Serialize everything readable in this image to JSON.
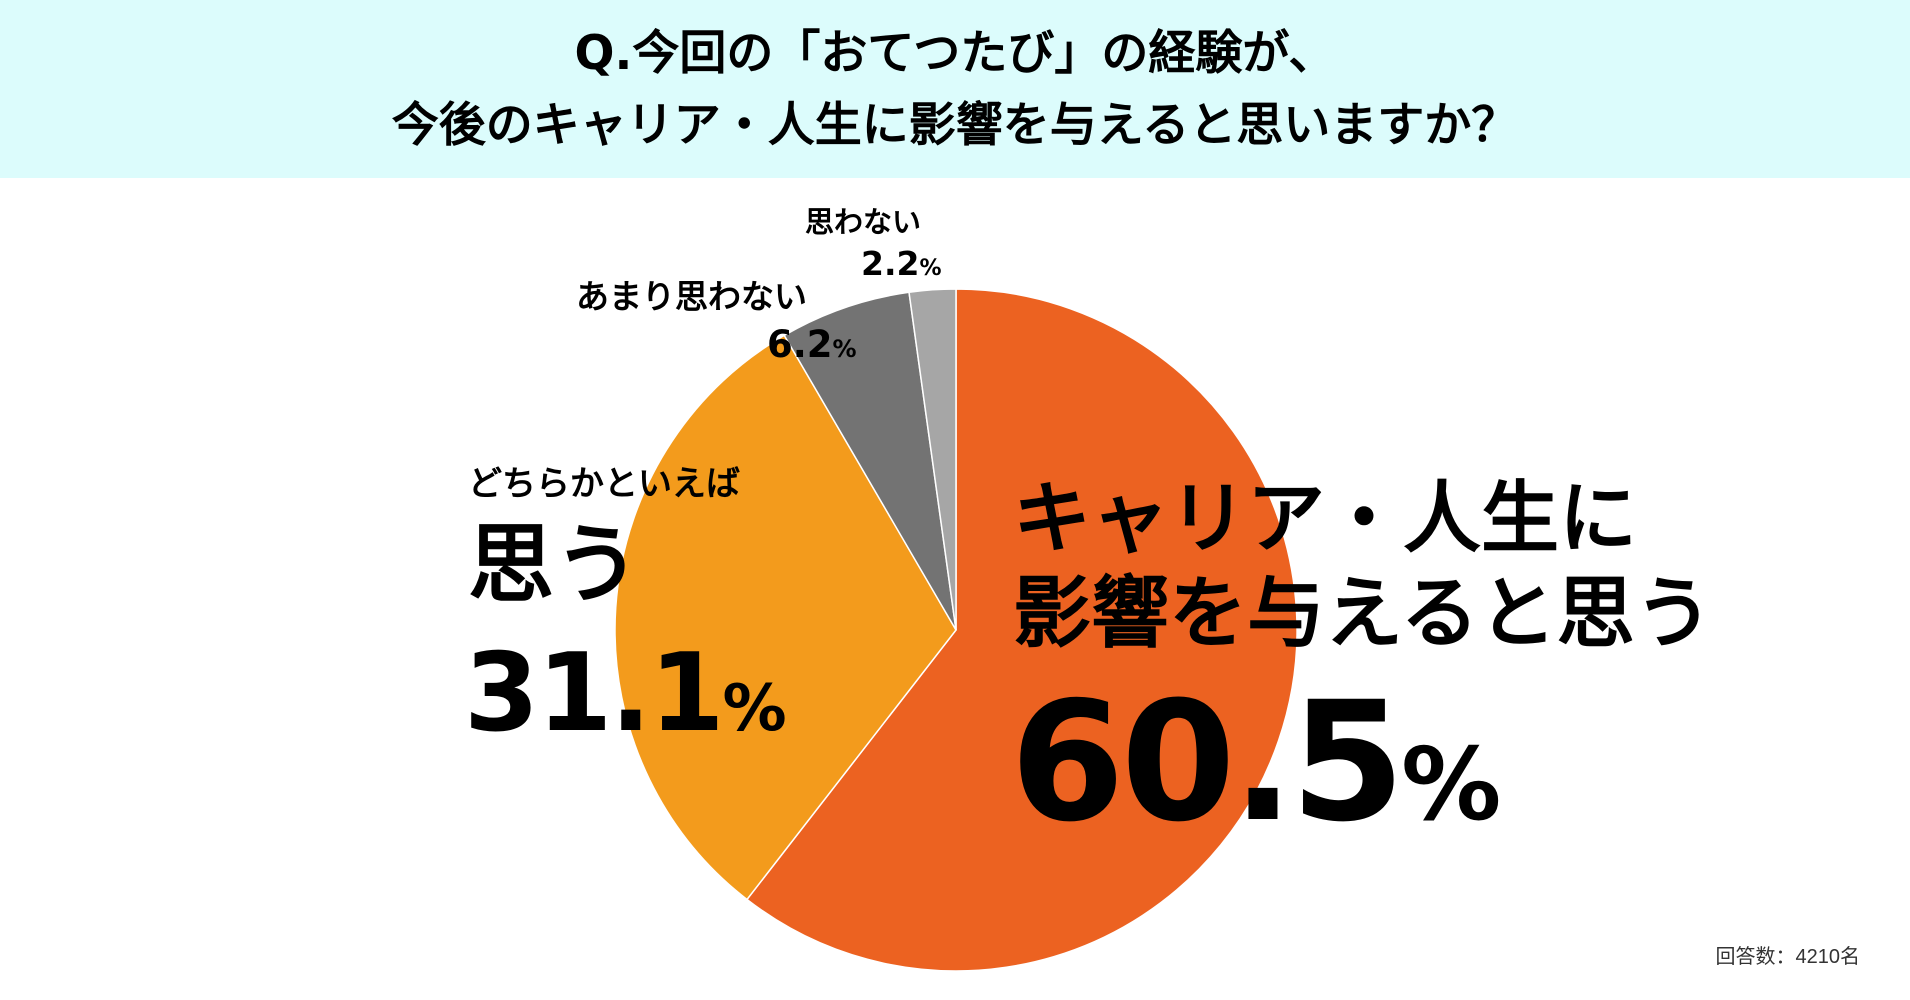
{
  "header": {
    "line1": "Q.今回の「おてつたび」の経験が、",
    "line2": "今後のキャリア・人生に影響を与えると思いますか？"
  },
  "chart_data": {
    "type": "pie",
    "slices": [
      {
        "label_line1": "キャリア・人生に",
        "label_line2": "影響を与えると思う",
        "value": 60.5,
        "value_text": "60.5",
        "unit": "%",
        "color": "#ec6221"
      },
      {
        "label_line1": "どちらかといえば",
        "label_line2": "思う",
        "value": 31.1,
        "value_text": "31.1",
        "unit": "%",
        "color": "#f39b1c"
      },
      {
        "label_line1": "あまり思わない",
        "label_line2": "",
        "value": 6.2,
        "value_text": "6.2",
        "unit": "%",
        "color": "#737373"
      },
      {
        "label_line1": "思わない",
        "label_line2": "",
        "value": 2.2,
        "value_text": "2.2",
        "unit": "%",
        "color": "#a6a6a6"
      }
    ]
  },
  "footnote": "回答数：4210名"
}
